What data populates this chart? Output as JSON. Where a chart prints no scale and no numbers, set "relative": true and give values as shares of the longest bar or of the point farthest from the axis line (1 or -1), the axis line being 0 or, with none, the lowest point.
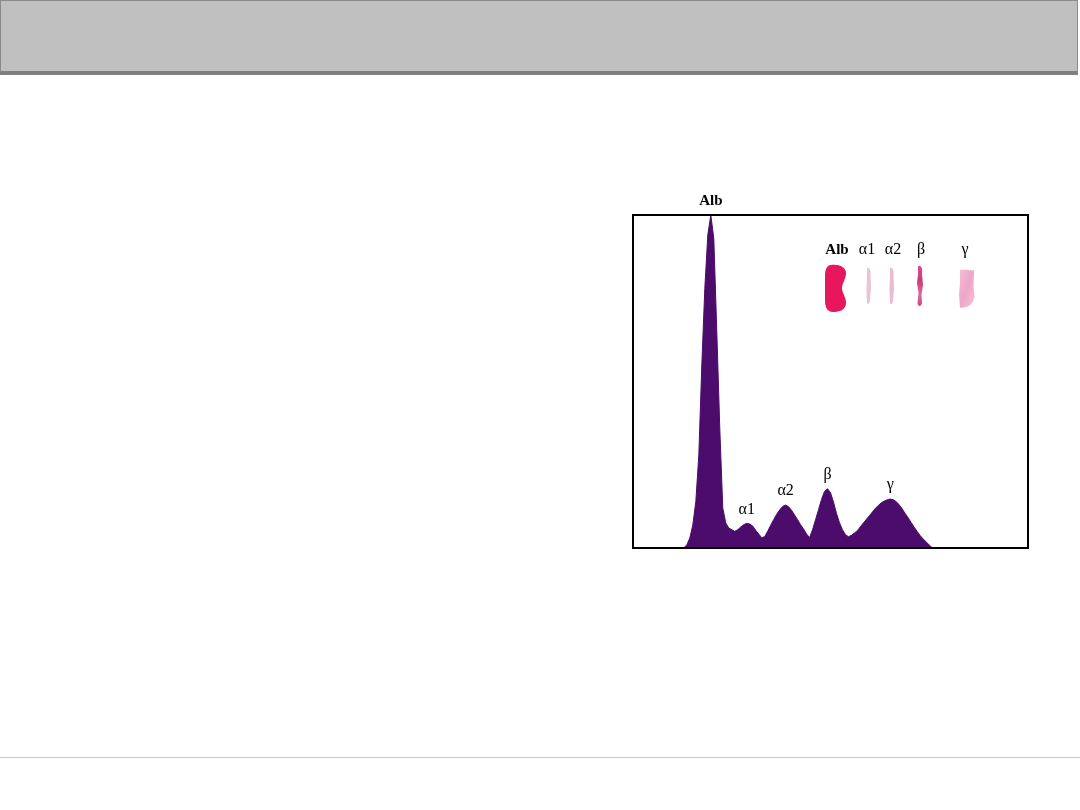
{
  "chart_data": {
    "type": "area",
    "relative": true,
    "color": "#4b0c6b",
    "categories": [
      null,
      null,
      null,
      null,
      null,
      null,
      null,
      null,
      null,
      null,
      null,
      null,
      null,
      null,
      null,
      null,
      null,
      null,
      null,
      null,
      null,
      null,
      null,
      null,
      null,
      null,
      null,
      null,
      null,
      null,
      null,
      null,
      null,
      null,
      null,
      null,
      null,
      null,
      null,
      null,
      null,
      null,
      null,
      null,
      null,
      null,
      null,
      null,
      null,
      null,
      null,
      null,
      null,
      null,
      null,
      null,
      null,
      null,
      null,
      null,
      null,
      null,
      null,
      null,
      null,
      null,
      null,
      null,
      null,
      null,
      null,
      null,
      null,
      null,
      null,
      null,
      null,
      null,
      null,
      null,
      null,
      null,
      null,
      null,
      null,
      null,
      null,
      null,
      null,
      null,
      null,
      null,
      null,
      null,
      null,
      null,
      null,
      null,
      null,
      null,
      null,
      null,
      null,
      null,
      null,
      null,
      null,
      null,
      null,
      null,
      null,
      null,
      null,
      null,
      null,
      null,
      null,
      null,
      null,
      null,
      null,
      null,
      null,
      null,
      null,
      null,
      null,
      null,
      null,
      null,
      null,
      null,
      null
    ],
    "values": [
      0,
      0,
      0,
      0,
      0,
      0,
      0,
      0,
      0,
      0,
      0,
      0,
      0,
      0,
      0,
      0,
      0,
      0,
      0.01,
      0.03,
      0.07,
      0.14,
      0.28,
      0.55,
      0.78,
      0.94,
      1,
      0.93,
      0.65,
      0.36,
      0.12,
      0.075,
      0.06,
      0.055,
      0.05,
      0.055,
      0.063,
      0.07,
      0.074,
      0.072,
      0.066,
      0.053,
      0.042,
      0.031,
      0.034,
      0.05,
      0.068,
      0.085,
      0.101,
      0.114,
      0.125,
      0.129,
      0.124,
      0.113,
      0.099,
      0.085,
      0.07,
      0.057,
      0.042,
      0.031,
      0.055,
      0.085,
      0.115,
      0.146,
      0.17,
      0.178,
      0.166,
      0.138,
      0.104,
      0.076,
      0.055,
      0.04,
      0.034,
      0.038,
      0.045,
      0.052,
      0.064,
      0.075,
      0.086,
      0.097,
      0.108,
      0.119,
      0.128,
      0.136,
      0.141,
      0.145,
      0.147,
      0.145,
      0.139,
      0.129,
      0.117,
      0.103,
      0.09,
      0.076,
      0.062,
      0.049,
      0.037,
      0.027,
      0.018,
      0.009,
      0,
      0,
      0,
      0,
      0,
      0,
      0,
      0,
      0,
      0,
      0,
      0,
      0,
      0,
      0,
      0,
      0,
      0,
      0,
      0,
      0,
      0,
      0,
      0,
      0,
      0,
      0,
      0,
      0,
      0,
      0,
      0,
      0
    ],
    "annotations": [
      {
        "text": "Alb",
        "y": 1
      },
      {
        "text": "α1",
        "y": 0.074
      },
      {
        "text": "α2",
        "y": 0.129
      },
      {
        "text": "β",
        "y": 0.178
      },
      {
        "text": "γ",
        "y": 0.147
      },
      "Alb",
      "α1",
      "α2",
      "β",
      "γ"
    ]
  }
}
